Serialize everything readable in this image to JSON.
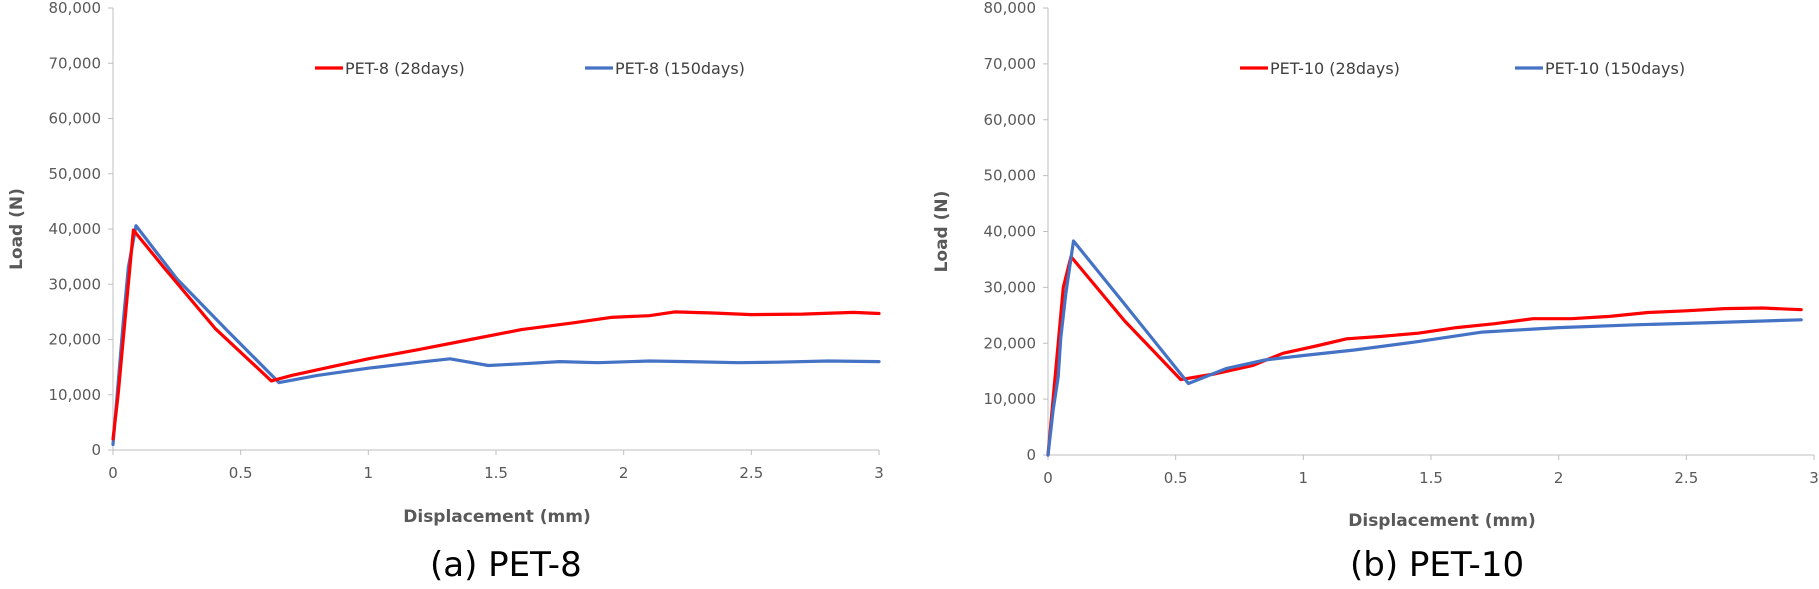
{
  "captions": [
    "(a) PET-8",
    "(b) PET-10"
  ],
  "chart_data": [
    {
      "type": "line",
      "title": "",
      "xlabel": "Displacement (mm)",
      "ylabel": "Load (N)",
      "xlim": [
        0,
        3
      ],
      "ylim": [
        0,
        80000
      ],
      "xticks": [
        0,
        0.5,
        1,
        1.5,
        2,
        2.5,
        3
      ],
      "xtick_labels": [
        "0",
        "0.5",
        "1",
        "1.5",
        "2",
        "2.5",
        "3"
      ],
      "yticks": [
        0,
        10000,
        20000,
        30000,
        40000,
        50000,
        60000,
        70000,
        80000
      ],
      "ytick_labels": [
        "0",
        "10,000",
        "20,000",
        "30,000",
        "40,000",
        "50,000",
        "60,000",
        "70,000",
        "80,000"
      ],
      "grid": "none",
      "legend": "top",
      "series": [
        {
          "name": "PET-8 (28days)",
          "color": "#ff0000",
          "points": [
            [
              0,
              2000
            ],
            [
              0.02,
              10000
            ],
            [
              0.04,
              20000
            ],
            [
              0.06,
              30000
            ],
            [
              0.08,
              39800
            ],
            [
              0.2,
              33000
            ],
            [
              0.4,
              22000
            ],
            [
              0.62,
              12500
            ],
            [
              0.7,
              13500
            ],
            [
              0.85,
              15000
            ],
            [
              1.0,
              16500
            ],
            [
              1.2,
              18200
            ],
            [
              1.4,
              20000
            ],
            [
              1.6,
              21800
            ],
            [
              1.8,
              23000
            ],
            [
              1.95,
              24000
            ],
            [
              2.1,
              24300
            ],
            [
              2.2,
              25000
            ],
            [
              2.35,
              24800
            ],
            [
              2.5,
              24500
            ],
            [
              2.7,
              24600
            ],
            [
              2.9,
              24900
            ],
            [
              3.0,
              24700
            ]
          ]
        },
        {
          "name": "PET-8 (150days)",
          "color": "#4472c4",
          "points": [
            [
              0,
              1000
            ],
            [
              0.02,
              12000
            ],
            [
              0.04,
              23000
            ],
            [
              0.06,
              33000
            ],
            [
              0.09,
              40600
            ],
            [
              0.25,
              31000
            ],
            [
              0.45,
              21500
            ],
            [
              0.65,
              12200
            ],
            [
              0.8,
              13500
            ],
            [
              1.0,
              14800
            ],
            [
              1.2,
              15900
            ],
            [
              1.32,
              16500
            ],
            [
              1.47,
              15300
            ],
            [
              1.6,
              15600
            ],
            [
              1.75,
              16000
            ],
            [
              1.9,
              15800
            ],
            [
              2.1,
              16100
            ],
            [
              2.25,
              16000
            ],
            [
              2.45,
              15800
            ],
            [
              2.6,
              15900
            ],
            [
              2.8,
              16100
            ],
            [
              3.0,
              16000
            ]
          ]
        }
      ]
    },
    {
      "type": "line",
      "title": "",
      "xlabel": "Displacement (mm)",
      "ylabel": "Load (N)",
      "xlim": [
        0,
        3
      ],
      "ylim": [
        0,
        80000
      ],
      "xticks": [
        0,
        0.5,
        1,
        1.5,
        2,
        2.5,
        3
      ],
      "xtick_labels": [
        "0",
        "0.5",
        "1",
        "1.5",
        "2",
        "2.5",
        "3"
      ],
      "yticks": [
        0,
        10000,
        20000,
        30000,
        40000,
        50000,
        60000,
        70000,
        80000
      ],
      "ytick_labels": [
        "0",
        "10,000",
        "20,000",
        "30,000",
        "40,000",
        "50,000",
        "60,000",
        "70,000",
        "80,000"
      ],
      "grid": "none",
      "legend": "top",
      "series": [
        {
          "name": "PET-10 (28days)",
          "color": "#ff0000",
          "points": [
            [
              0,
              0
            ],
            [
              0.02,
              10000
            ],
            [
              0.04,
              20000
            ],
            [
              0.06,
              30000
            ],
            [
              0.09,
              35500
            ],
            [
              0.3,
              24000
            ],
            [
              0.52,
              13500
            ],
            [
              0.65,
              14500
            ],
            [
              0.8,
              16000
            ],
            [
              0.92,
              18200
            ],
            [
              1.05,
              19500
            ],
            [
              1.17,
              20800
            ],
            [
              1.3,
              21200
            ],
            [
              1.45,
              21800
            ],
            [
              1.6,
              22800
            ],
            [
              1.75,
              23500
            ],
            [
              1.9,
              24400
            ],
            [
              2.05,
              24400
            ],
            [
              2.2,
              24800
            ],
            [
              2.35,
              25500
            ],
            [
              2.5,
              25800
            ],
            [
              2.65,
              26200
            ],
            [
              2.8,
              26300
            ],
            [
              2.95,
              26000
            ]
          ]
        },
        {
          "name": "PET-10 (150days)",
          "color": "#4472c4",
          "points": [
            [
              0,
              0
            ],
            [
              0.02,
              8000
            ],
            [
              0.04,
              14000
            ],
            [
              0.05,
              21000
            ],
            [
              0.07,
              29000
            ],
            [
              0.1,
              38300
            ],
            [
              0.3,
              27000
            ],
            [
              0.55,
              12800
            ],
            [
              0.7,
              15500
            ],
            [
              0.85,
              17000
            ],
            [
              1.0,
              17800
            ],
            [
              1.2,
              18800
            ],
            [
              1.45,
              20300
            ],
            [
              1.7,
              22000
            ],
            [
              2.0,
              22800
            ],
            [
              2.3,
              23300
            ],
            [
              2.6,
              23700
            ],
            [
              2.95,
              24200
            ]
          ]
        }
      ]
    }
  ]
}
